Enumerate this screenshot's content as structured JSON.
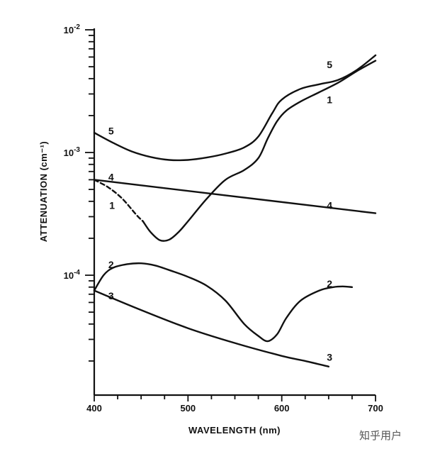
{
  "chart_data": {
    "type": "line",
    "xlabel": "WAVELENGTH (nm)",
    "ylabel": "ATTENUATION (cm⁻¹)",
    "xlim": [
      400,
      700
    ],
    "ylim": [
      2e-05,
      0.01
    ],
    "y_scale": "log",
    "x_ticks": [
      {
        "value": 400,
        "label": "400"
      },
      {
        "value": 500,
        "label": "500"
      },
      {
        "value": 600,
        "label": "600"
      },
      {
        "value": 700,
        "label": "700"
      }
    ],
    "y_ticks": [
      {
        "value": 0.0001,
        "base": "10",
        "exp": "-4"
      },
      {
        "value": 0.001,
        "base": "10",
        "exp": "-3"
      },
      {
        "value": 0.01,
        "base": "10",
        "exp": "-2"
      }
    ],
    "grid": false,
    "legend": "none",
    "series": [
      {
        "id": "5",
        "label": "5",
        "style": "solid",
        "x": [
          400,
          420,
          440,
          460,
          480,
          500,
          520,
          540,
          560,
          575,
          590,
          600,
          620,
          640,
          660,
          680,
          700
        ],
        "y": [
          0.00145,
          0.0012,
          0.00102,
          0.00092,
          0.00087,
          0.00087,
          0.00091,
          0.00098,
          0.0011,
          0.00135,
          0.0021,
          0.0027,
          0.0033,
          0.0036,
          0.0039,
          0.0047,
          0.0062
        ]
      },
      {
        "id": "1",
        "label": "1",
        "style": "solid",
        "x": [
          452,
          460,
          470,
          480,
          490,
          500,
          520,
          540,
          560,
          575,
          585,
          595,
          605,
          620,
          640,
          660,
          680,
          700
        ],
        "y": [
          0.000275,
          0.000225,
          0.000193,
          0.000195,
          0.000225,
          0.000275,
          0.00042,
          0.0006,
          0.00072,
          0.0009,
          0.0013,
          0.0018,
          0.0022,
          0.0026,
          0.0031,
          0.0037,
          0.0046,
          0.0056
        ]
      },
      {
        "id": "1-dashed",
        "style": "dashed",
        "x": [
          400,
          415,
          430,
          445,
          452
        ],
        "y": [
          0.0006,
          0.00052,
          0.00042,
          0.00031,
          0.000275
        ]
      },
      {
        "id": "4",
        "label": "4",
        "style": "solid",
        "x": [
          400,
          700
        ],
        "y": [
          0.0006,
          0.00032
        ]
      },
      {
        "id": "2",
        "label": "2",
        "style": "solid",
        "x": [
          400,
          410,
          420,
          435,
          450,
          465,
          480,
          500,
          520,
          540,
          560,
          575,
          585,
          595,
          605,
          620,
          640,
          655,
          665,
          675
        ],
        "y": [
          7.5e-05,
          0.0001,
          0.000115,
          0.000123,
          0.000125,
          0.00012,
          0.00011,
          9.7e-05,
          8.2e-05,
          6.2e-05,
          4e-05,
          3.2e-05,
          2.9e-05,
          3.3e-05,
          4.5e-05,
          6.2e-05,
          7.5e-05,
          8e-05,
          8.1e-05,
          8e-05
        ]
      },
      {
        "id": "3",
        "label": "3",
        "style": "solid",
        "x": [
          400,
          450,
          500,
          550,
          600,
          625,
          650
        ],
        "y": [
          7.5e-05,
          5.2e-05,
          3.7e-05,
          2.8e-05,
          2.2e-05,
          2e-05,
          1.8e-05
        ]
      }
    ],
    "annotations": [
      {
        "text": "5",
        "x": 418,
        "y": 0.0015
      },
      {
        "text": "5",
        "x": 651,
        "y": 0.0052
      },
      {
        "text": "1",
        "x": 419,
        "y": 0.00037
      },
      {
        "text": "1",
        "x": 651,
        "y": 0.0027
      },
      {
        "text": "4",
        "x": 418,
        "y": 0.00063
      },
      {
        "text": "4",
        "x": 651,
        "y": 0.00037
      },
      {
        "text": "2",
        "x": 418,
        "y": 0.000122
      },
      {
        "text": "2",
        "x": 651,
        "y": 8.5e-05
      },
      {
        "text": "3",
        "x": 418,
        "y": 6.8e-05
      },
      {
        "text": "3",
        "x": 651,
        "y": 2.15e-05
      }
    ]
  },
  "watermark": "知乎用户"
}
